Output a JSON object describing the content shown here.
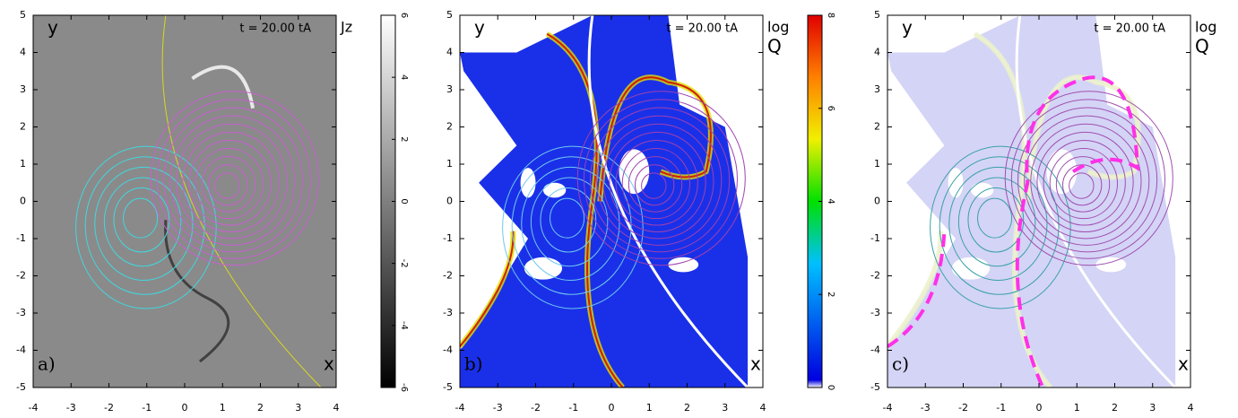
{
  "chart_data": [
    {
      "type": "heatmap",
      "panel_label": "a)",
      "x_label": "x",
      "y_label": "y",
      "time_label": "t = 20.00 tA",
      "time_label_color": "#d8d820",
      "xlim": [
        -4,
        4
      ],
      "ylim": [
        -5,
        5
      ],
      "xticks": [
        -4,
        -3,
        -2,
        -1,
        0,
        1,
        2,
        3,
        4
      ],
      "yticks": [
        -5,
        -4,
        -3,
        -2,
        -1,
        0,
        1,
        2,
        3,
        4,
        5
      ],
      "colorbar_label": [
        "Jz"
      ],
      "colorbar": {
        "lim": [
          -6,
          6
        ],
        "ticks": [
          -6,
          -4,
          -2,
          0,
          2,
          4,
          6
        ],
        "colors": [
          "#000000",
          "#ffffff"
        ]
      }
    },
    {
      "type": "heatmap",
      "panel_label": "b)",
      "x_label": "x",
      "y_label": "y",
      "time_label": "t = 20.00 tA",
      "time_label_color": "#e02020",
      "xlim": [
        -4,
        4
      ],
      "ylim": [
        -5,
        5
      ],
      "xticks": [
        -4,
        -3,
        -2,
        -1,
        0,
        1,
        2,
        3,
        4
      ],
      "yticks": [
        -5,
        -4,
        -3,
        -2,
        -1,
        0,
        1,
        2,
        3,
        4,
        5
      ],
      "colorbar_label": [
        "log",
        "Q"
      ],
      "colorbar": {
        "lim": [
          0,
          8
        ],
        "ticks": [
          0,
          2,
          4,
          6,
          8
        ],
        "colors": [
          "#ffffff",
          "#0000e0",
          "#00c0ff",
          "#00e000",
          "#f0f000",
          "#ff8000",
          "#e00000"
        ]
      }
    },
    {
      "type": "heatmap",
      "panel_label": "c)",
      "x_label": "x",
      "y_label": "y",
      "time_label": "t = 20.00 tA",
      "time_label_color": "#e02020",
      "xlim": [
        -4,
        4
      ],
      "ylim": [
        -5,
        5
      ],
      "xticks": [
        -4,
        -3,
        -2,
        -1,
        0,
        1,
        2,
        3,
        4
      ],
      "yticks": [
        -5,
        -4,
        -3,
        -2,
        -1,
        0,
        1,
        2,
        3,
        4,
        5
      ],
      "colorbar_label": [
        "log",
        "Q"
      ]
    }
  ]
}
